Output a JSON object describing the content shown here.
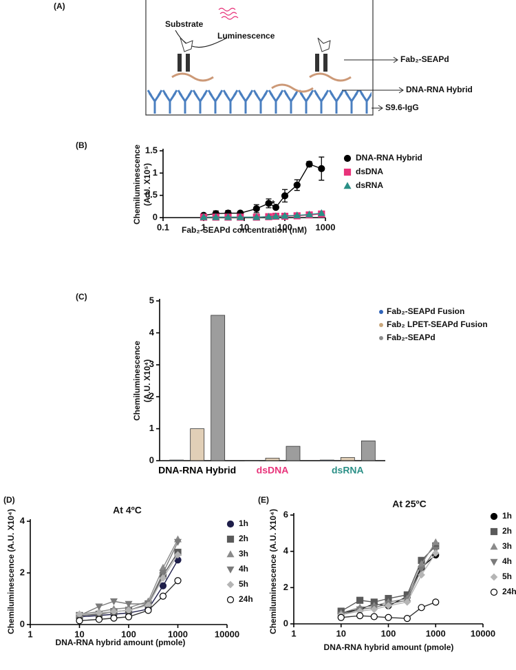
{
  "diagram": {
    "label": "(A)",
    "substrate": "Substrate",
    "luminescence": "Luminescence",
    "fab": "Fab₂-SEAPd",
    "hybrid": "DNA-RNA Hybrid",
    "igg": "S9.6-IgG"
  },
  "chart_data": [
    {
      "type": "scatter",
      "panel": "(B)",
      "xscale": "log",
      "ylabel": [
        "Chemiluminescence",
        "(A.U. X10⁵)"
      ],
      "xlabel": "Fab₂-SEAPd concentration (nM)",
      "annotation": "*",
      "x": [
        1,
        2,
        4,
        8,
        20,
        40,
        60,
        100,
        200,
        400,
        800
      ],
      "xlim": [
        0.1,
        1000
      ],
      "xticks": [
        0.1,
        1,
        10,
        100,
        1000
      ],
      "ylim": [
        0,
        1.5
      ],
      "yticks": [
        0,
        0.5,
        1,
        1.5
      ],
      "series": [
        {
          "name": "DNA-RNA Hybrid",
          "color": "#000000",
          "marker": "circle",
          "values": [
            0.05,
            0.09,
            0.1,
            0.1,
            0.2,
            0.32,
            0.23,
            0.49,
            0.73,
            1.2,
            1.1
          ],
          "errors": [
            0.02,
            0.06,
            0.06,
            0.04,
            0.09,
            0.1,
            0,
            0.14,
            0.12,
            0.06,
            0.26
          ]
        },
        {
          "name": "dsDNA",
          "color": "#e8337a",
          "marker": "square",
          "values": [
            0.01,
            0.01,
            0.01,
            0.01,
            0.01,
            0.02,
            0.03,
            0.03,
            0.04,
            0.06,
            0.08
          ]
        },
        {
          "name": "dsRNA",
          "color": "#2a8f86",
          "marker": "triangle",
          "values": [
            0.01,
            0.01,
            0.01,
            0.01,
            0.01,
            0.02,
            0.03,
            0.04,
            0.05,
            0.07,
            0.1
          ]
        }
      ]
    },
    {
      "type": "bar",
      "panel": "(C)",
      "ylabel": [
        "Chemiluminescence",
        "(A.U. X10⁴)"
      ],
      "categories": [
        "DNA-RNA Hybrid",
        "dsDNA",
        "dsRNA"
      ],
      "category_colors": [
        "#000000",
        "#e8337a",
        "#2a8f86"
      ],
      "ylim": [
        0,
        5
      ],
      "yticks": [
        0,
        1,
        2,
        3,
        4,
        5
      ],
      "series": [
        {
          "name": "Fab₂-SEAPd Fusion",
          "color": "#2f63b8",
          "values": [
            0.02,
            0.01,
            0.02
          ]
        },
        {
          "name": "Fab₂ LPET-SEAPd Fusion",
          "color": "#c9a77c",
          "values": [
            1.0,
            0.08,
            0.1
          ]
        },
        {
          "name": "Fab₂-SEAPd",
          "color": "#8c8c8c",
          "values": [
            4.55,
            0.45,
            0.62
          ]
        }
      ]
    },
    {
      "type": "scatter",
      "panel": "(D)",
      "title": "At 4ºC",
      "xscale": "log",
      "ylabel": "Chemiluminescence (A.U. X10⁴)",
      "xlabel": "DNA-RNA hybrid amount (pmole)",
      "x": [
        10,
        25,
        50,
        100,
        250,
        500,
        1000
      ],
      "xlim": [
        1,
        10000
      ],
      "xticks": [
        1,
        10,
        100,
        1000,
        10000
      ],
      "ylim": [
        0,
        4
      ],
      "yticks": [
        0,
        2,
        4
      ],
      "series": [
        {
          "name": "1h",
          "color": "#1e1e4a",
          "marker": "circle",
          "values": [
            0.3,
            0.35,
            0.4,
            0.45,
            0.6,
            1.5,
            2.5
          ]
        },
        {
          "name": "2h",
          "color": "#5a5a5a",
          "marker": "square",
          "values": [
            0.35,
            0.4,
            0.5,
            0.55,
            0.8,
            1.9,
            2.8
          ]
        },
        {
          "name": "3h",
          "color": "#8a8a8a",
          "marker": "triangle",
          "values": [
            0.4,
            0.5,
            0.6,
            0.65,
            0.9,
            2.2,
            3.3
          ]
        },
        {
          "name": "4h",
          "color": "#7a7a7a",
          "marker": "triangle-down",
          "values": [
            0.35,
            0.7,
            0.9,
            0.8,
            0.8,
            2.0,
            3.2
          ]
        },
        {
          "name": "5h",
          "color": "#b5b5b5",
          "marker": "diamond",
          "values": [
            0.4,
            0.45,
            0.5,
            0.55,
            0.75,
            1.8,
            2.7
          ]
        },
        {
          "name": "24h",
          "color": "#ffffff",
          "marker": "open-circle",
          "values": [
            0.15,
            0.2,
            0.25,
            0.3,
            0.55,
            1.1,
            1.7
          ]
        }
      ]
    },
    {
      "type": "scatter",
      "panel": "(E)",
      "title": "At 25ºC",
      "xscale": "log",
      "ylabel": "Chemiluminescence (A.U. X10⁴)",
      "xlabel": "DNA-RNA hybrid amount (pmole)",
      "x": [
        10,
        25,
        50,
        100,
        250,
        500,
        1000
      ],
      "xlim": [
        1,
        10000
      ],
      "xticks": [
        1,
        10,
        100,
        1000,
        10000
      ],
      "ylim": [
        0,
        6
      ],
      "yticks": [
        0,
        2,
        4,
        6
      ],
      "series": [
        {
          "name": "1h",
          "color": "#000000",
          "marker": "circle",
          "values": [
            0.6,
            0.8,
            1.1,
            1.0,
            1.5,
            3.1,
            3.8
          ]
        },
        {
          "name": "2h",
          "color": "#5a5a5a",
          "marker": "square",
          "values": [
            0.7,
            1.3,
            1.2,
            1.4,
            1.6,
            3.5,
            4.3
          ]
        },
        {
          "name": "3h",
          "color": "#8a8a8a",
          "marker": "triangle",
          "values": [
            0.6,
            0.9,
            1.0,
            1.2,
            1.4,
            3.3,
            4.5
          ]
        },
        {
          "name": "4h",
          "color": "#7a7a7a",
          "marker": "triangle-down",
          "values": [
            0.5,
            0.8,
            0.9,
            1.1,
            1.3,
            3.0,
            4.1
          ]
        },
        {
          "name": "5h",
          "color": "#b5b5b5",
          "marker": "diamond",
          "values": [
            0.5,
            0.7,
            0.8,
            1.0,
            1.2,
            2.7,
            3.9
          ]
        },
        {
          "name": "24h",
          "color": "#ffffff",
          "marker": "open-circle",
          "values": [
            0.35,
            0.45,
            0.4,
            0.35,
            0.3,
            0.9,
            1.2
          ]
        }
      ]
    }
  ]
}
